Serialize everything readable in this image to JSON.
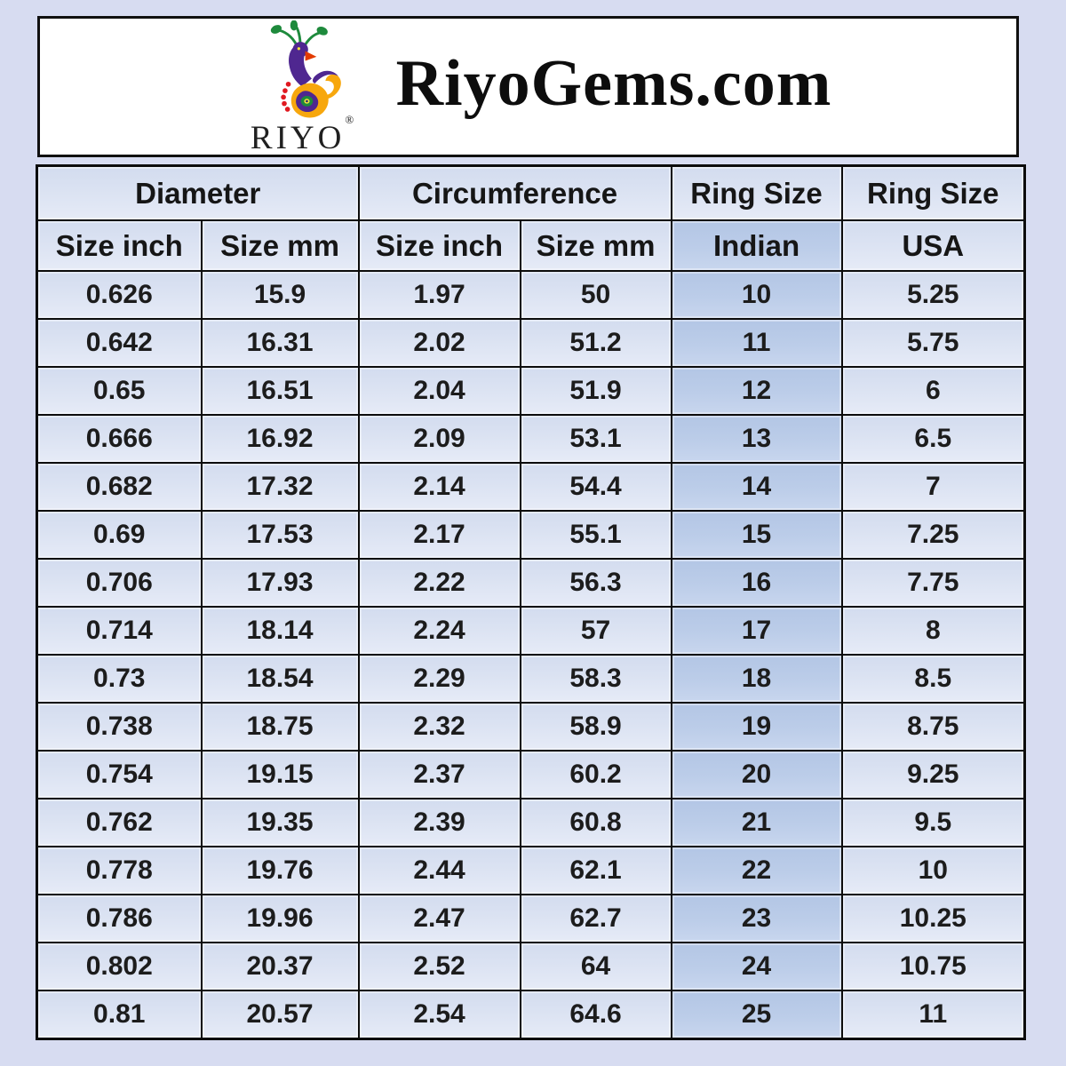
{
  "header": {
    "brand_title": "RiyoGems.com",
    "logo_text": "RIYO",
    "logo_registered": "®"
  },
  "colors": {
    "page_bg": "#d7dcf1",
    "cell_bg": "#dde4f3",
    "highlight_bg": "#bccde9",
    "border": "#0c0c0c",
    "logo_orange": "#f7a70d",
    "logo_purple": "#4f2790",
    "logo_green": "#1e8a3c",
    "logo_red": "#e01920"
  },
  "chart_data": {
    "type": "table",
    "title": "RiyoGems.com ring size conversion chart",
    "group_headers": [
      "Diameter",
      "Circumference",
      "Ring Size",
      "Ring Size"
    ],
    "columns": [
      "Size inch",
      "Size mm",
      "Size inch",
      "Size mm",
      "Indian",
      "USA"
    ],
    "highlight_column": "Indian",
    "rows": [
      [
        "0.626",
        "15.9",
        "1.97",
        "50",
        "10",
        "5.25"
      ],
      [
        "0.642",
        "16.31",
        "2.02",
        "51.2",
        "11",
        "5.75"
      ],
      [
        "0.65",
        "16.51",
        "2.04",
        "51.9",
        "12",
        "6"
      ],
      [
        "0.666",
        "16.92",
        "2.09",
        "53.1",
        "13",
        "6.5"
      ],
      [
        "0.682",
        "17.32",
        "2.14",
        "54.4",
        "14",
        "7"
      ],
      [
        "0.69",
        "17.53",
        "2.17",
        "55.1",
        "15",
        "7.25"
      ],
      [
        "0.706",
        "17.93",
        "2.22",
        "56.3",
        "16",
        "7.75"
      ],
      [
        "0.714",
        "18.14",
        "2.24",
        "57",
        "17",
        "8"
      ],
      [
        "0.73",
        "18.54",
        "2.29",
        "58.3",
        "18",
        "8.5"
      ],
      [
        "0.738",
        "18.75",
        "2.32",
        "58.9",
        "19",
        "8.75"
      ],
      [
        "0.754",
        "19.15",
        "2.37",
        "60.2",
        "20",
        "9.25"
      ],
      [
        "0.762",
        "19.35",
        "2.39",
        "60.8",
        "21",
        "9.5"
      ],
      [
        "0.778",
        "19.76",
        "2.44",
        "62.1",
        "22",
        "10"
      ],
      [
        "0.786",
        "19.96",
        "2.47",
        "62.7",
        "23",
        "10.25"
      ],
      [
        "0.802",
        "20.37",
        "2.52",
        "64",
        "24",
        "10.75"
      ],
      [
        "0.81",
        "20.57",
        "2.54",
        "64.6",
        "25",
        "11"
      ]
    ]
  }
}
